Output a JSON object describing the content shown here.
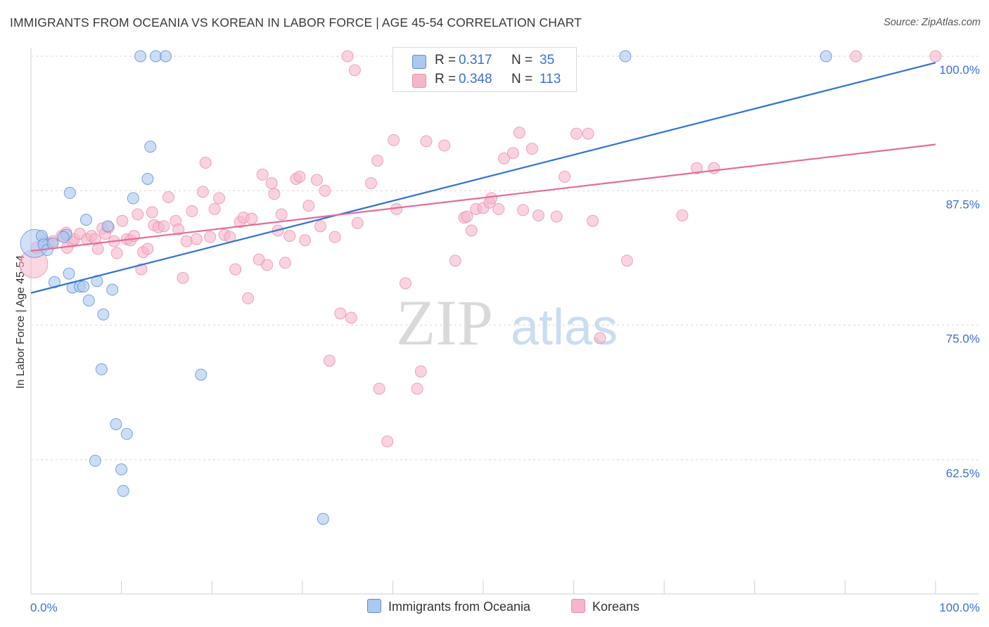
{
  "header": {
    "title": "IMMIGRANTS FROM OCEANIA VS KOREAN IN LABOR FORCE | AGE 45-54 CORRELATION CHART",
    "source": "Source: ZipAtlas.com"
  },
  "watermark": {
    "zip": "ZIP",
    "atlas": "atlas"
  },
  "legend": {
    "rows": [
      {
        "r_label": "R =",
        "r_value": "0.317",
        "n_label": "N =",
        "n_value": "35",
        "color": "#aac8f0"
      },
      {
        "r_label": "R =",
        "r_value": "0.348",
        "n_label": "N =",
        "n_value": "113",
        "color": "#f6b6ca"
      }
    ]
  },
  "colors": {
    "blue_fill": "#aac8f0",
    "blue_stroke": "#5b8fd6",
    "blue_line": "#2f72d6",
    "pink_fill": "#f6b6ca",
    "pink_stroke": "#e890ad",
    "pink_line": "#e46c98",
    "tick_label": "#3a6fd8",
    "grid": "#d6d6d6"
  },
  "chart_data": {
    "type": "scatter",
    "title": "IMMIGRANTS FROM OCEANIA VS KOREAN IN LABOR FORCE | AGE 45-54 CORRELATION CHART",
    "xlabel": "",
    "ylabel": "In Labor Force | Age 45-54",
    "xlim": [
      0,
      100
    ],
    "ylim": [
      52,
      101
    ],
    "x_tick_labels": [
      "0.0%",
      "100.0%"
    ],
    "y_ticks": [
      62.5,
      75.0,
      87.5,
      100.0
    ],
    "y_tick_labels": [
      "62.5%",
      "75.0%",
      "87.5%",
      "100.0%"
    ],
    "grid": true,
    "legend_position": "top-center",
    "series": [
      {
        "name": "Immigrants from Oceania",
        "color": "#aac8f0",
        "trend": {
          "x": [
            0,
            100
          ],
          "y": [
            78.0,
            99.4
          ]
        },
        "points": [
          {
            "x": 0.4,
            "y": 82.6,
            "big": true
          },
          {
            "x": 1.2,
            "y": 83.3
          },
          {
            "x": 1.4,
            "y": 82.5
          },
          {
            "x": 1.8,
            "y": 82.0
          },
          {
            "x": 2.4,
            "y": 82.6
          },
          {
            "x": 2.6,
            "y": 79.0
          },
          {
            "x": 3.9,
            "y": 83.4
          },
          {
            "x": 3.6,
            "y": 83.2
          },
          {
            "x": 4.2,
            "y": 79.8
          },
          {
            "x": 4.3,
            "y": 87.3
          },
          {
            "x": 4.6,
            "y": 78.5
          },
          {
            "x": 5.4,
            "y": 78.6
          },
          {
            "x": 5.8,
            "y": 78.6
          },
          {
            "x": 6.1,
            "y": 84.8
          },
          {
            "x": 6.4,
            "y": 77.3
          },
          {
            "x": 7.1,
            "y": 62.4
          },
          {
            "x": 7.3,
            "y": 79.1
          },
          {
            "x": 7.8,
            "y": 70.9
          },
          {
            "x": 8.0,
            "y": 76.0
          },
          {
            "x": 8.5,
            "y": 84.2
          },
          {
            "x": 9.0,
            "y": 78.3
          },
          {
            "x": 9.4,
            "y": 65.8
          },
          {
            "x": 10.0,
            "y": 61.6
          },
          {
            "x": 10.2,
            "y": 59.6
          },
          {
            "x": 10.6,
            "y": 64.9
          },
          {
            "x": 11.3,
            "y": 86.8
          },
          {
            "x": 12.1,
            "y": 100.0
          },
          {
            "x": 12.9,
            "y": 88.6
          },
          {
            "x": 13.2,
            "y": 91.6
          },
          {
            "x": 13.8,
            "y": 100.0
          },
          {
            "x": 14.9,
            "y": 100.0
          },
          {
            "x": 18.8,
            "y": 70.4
          },
          {
            "x": 32.3,
            "y": 57.0
          },
          {
            "x": 65.7,
            "y": 100.0
          },
          {
            "x": 87.9,
            "y": 100.0
          }
        ]
      },
      {
        "name": "Koreans",
        "color": "#f6b6ca",
        "trend": {
          "x": [
            0,
            100
          ],
          "y": [
            81.9,
            91.8
          ]
        },
        "points": [
          {
            "x": 0.3,
            "y": 80.7,
            "big": true
          },
          {
            "x": 0.6,
            "y": 82.2
          },
          {
            "x": 1.4,
            "y": 82.8
          },
          {
            "x": 2.0,
            "y": 82.6
          },
          {
            "x": 2.4,
            "y": 82.8
          },
          {
            "x": 3.4,
            "y": 83.3
          },
          {
            "x": 3.9,
            "y": 83.6
          },
          {
            "x": 4.0,
            "y": 82.2
          },
          {
            "x": 4.6,
            "y": 82.8
          },
          {
            "x": 4.8,
            "y": 83.0
          },
          {
            "x": 5.4,
            "y": 83.5
          },
          {
            "x": 6.2,
            "y": 83.0
          },
          {
            "x": 6.7,
            "y": 83.3
          },
          {
            "x": 7.1,
            "y": 83.0
          },
          {
            "x": 7.4,
            "y": 82.1
          },
          {
            "x": 7.9,
            "y": 84.0
          },
          {
            "x": 8.2,
            "y": 83.5
          },
          {
            "x": 8.6,
            "y": 84.1
          },
          {
            "x": 9.2,
            "y": 82.8
          },
          {
            "x": 9.5,
            "y": 81.7
          },
          {
            "x": 10.1,
            "y": 84.7
          },
          {
            "x": 10.6,
            "y": 83.0
          },
          {
            "x": 11.0,
            "y": 82.9
          },
          {
            "x": 11.4,
            "y": 83.3
          },
          {
            "x": 11.8,
            "y": 85.3
          },
          {
            "x": 12.2,
            "y": 80.2
          },
          {
            "x": 12.4,
            "y": 81.8
          },
          {
            "x": 12.9,
            "y": 82.1
          },
          {
            "x": 13.4,
            "y": 85.5
          },
          {
            "x": 13.6,
            "y": 84.3
          },
          {
            "x": 14.1,
            "y": 84.1
          },
          {
            "x": 14.7,
            "y": 84.2
          },
          {
            "x": 15.2,
            "y": 86.9
          },
          {
            "x": 16.0,
            "y": 84.7
          },
          {
            "x": 16.3,
            "y": 83.9
          },
          {
            "x": 16.8,
            "y": 79.4
          },
          {
            "x": 17.2,
            "y": 82.8
          },
          {
            "x": 17.8,
            "y": 85.6
          },
          {
            "x": 18.3,
            "y": 83.0
          },
          {
            "x": 19.0,
            "y": 87.4
          },
          {
            "x": 19.3,
            "y": 90.1
          },
          {
            "x": 19.8,
            "y": 83.2
          },
          {
            "x": 20.3,
            "y": 85.8
          },
          {
            "x": 20.8,
            "y": 86.8
          },
          {
            "x": 21.4,
            "y": 83.4
          },
          {
            "x": 22.0,
            "y": 83.2
          },
          {
            "x": 22.6,
            "y": 80.2
          },
          {
            "x": 23.1,
            "y": 84.6
          },
          {
            "x": 23.5,
            "y": 85.0
          },
          {
            "x": 24.0,
            "y": 77.5
          },
          {
            "x": 24.4,
            "y": 84.9
          },
          {
            "x": 25.2,
            "y": 81.1
          },
          {
            "x": 25.6,
            "y": 89.0
          },
          {
            "x": 26.1,
            "y": 80.6
          },
          {
            "x": 26.6,
            "y": 88.2
          },
          {
            "x": 26.9,
            "y": 87.2
          },
          {
            "x": 27.3,
            "y": 83.8
          },
          {
            "x": 27.7,
            "y": 85.3
          },
          {
            "x": 28.1,
            "y": 80.8
          },
          {
            "x": 28.6,
            "y": 83.3
          },
          {
            "x": 29.3,
            "y": 88.6
          },
          {
            "x": 29.7,
            "y": 88.8
          },
          {
            "x": 30.3,
            "y": 82.9
          },
          {
            "x": 30.7,
            "y": 86.1
          },
          {
            "x": 31.6,
            "y": 88.5
          },
          {
            "x": 32.0,
            "y": 84.2
          },
          {
            "x": 32.5,
            "y": 87.5
          },
          {
            "x": 33.6,
            "y": 83.2
          },
          {
            "x": 34.2,
            "y": 76.1
          },
          {
            "x": 35.4,
            "y": 75.7
          },
          {
            "x": 33.0,
            "y": 71.7
          },
          {
            "x": 35.8,
            "y": 98.7
          },
          {
            "x": 35.0,
            "y": 100.0
          },
          {
            "x": 36.1,
            "y": 84.5
          },
          {
            "x": 37.6,
            "y": 88.2
          },
          {
            "x": 38.3,
            "y": 90.3
          },
          {
            "x": 38.5,
            "y": 69.1
          },
          {
            "x": 39.4,
            "y": 64.2
          },
          {
            "x": 40.1,
            "y": 92.2
          },
          {
            "x": 40.4,
            "y": 85.8
          },
          {
            "x": 41.4,
            "y": 78.9
          },
          {
            "x": 42.7,
            "y": 69.1
          },
          {
            "x": 43.1,
            "y": 70.7
          },
          {
            "x": 43.7,
            "y": 92.1
          },
          {
            "x": 45.7,
            "y": 91.7
          },
          {
            "x": 40.7,
            "y": 100.0
          },
          {
            "x": 46.9,
            "y": 81.0
          },
          {
            "x": 47.9,
            "y": 85.0
          },
          {
            "x": 48.2,
            "y": 85.1
          },
          {
            "x": 48.7,
            "y": 83.8
          },
          {
            "x": 49.2,
            "y": 85.8
          },
          {
            "x": 50.0,
            "y": 85.9
          },
          {
            "x": 50.7,
            "y": 86.4
          },
          {
            "x": 50.9,
            "y": 86.8
          },
          {
            "x": 51.7,
            "y": 85.8
          },
          {
            "x": 52.3,
            "y": 90.5
          },
          {
            "x": 53.3,
            "y": 91.0
          },
          {
            "x": 54.0,
            "y": 92.9
          },
          {
            "x": 54.4,
            "y": 85.7
          },
          {
            "x": 55.4,
            "y": 91.4
          },
          {
            "x": 56.1,
            "y": 85.2
          },
          {
            "x": 58.1,
            "y": 85.1
          },
          {
            "x": 59.0,
            "y": 88.8
          },
          {
            "x": 60.3,
            "y": 92.8
          },
          {
            "x": 61.6,
            "y": 92.8
          },
          {
            "x": 62.1,
            "y": 84.7
          },
          {
            "x": 62.9,
            "y": 73.8
          },
          {
            "x": 65.9,
            "y": 81.0
          },
          {
            "x": 72.0,
            "y": 85.2
          },
          {
            "x": 73.6,
            "y": 89.6
          },
          {
            "x": 75.5,
            "y": 89.6
          },
          {
            "x": 91.2,
            "y": 100.0
          },
          {
            "x": 100.0,
            "y": 100.0
          }
        ]
      }
    ]
  },
  "bottom_legend": {
    "items": [
      {
        "label": "Immigrants from Oceania",
        "color": "#aac8f0"
      },
      {
        "label": "Koreans",
        "color": "#f6b6ca"
      }
    ]
  }
}
